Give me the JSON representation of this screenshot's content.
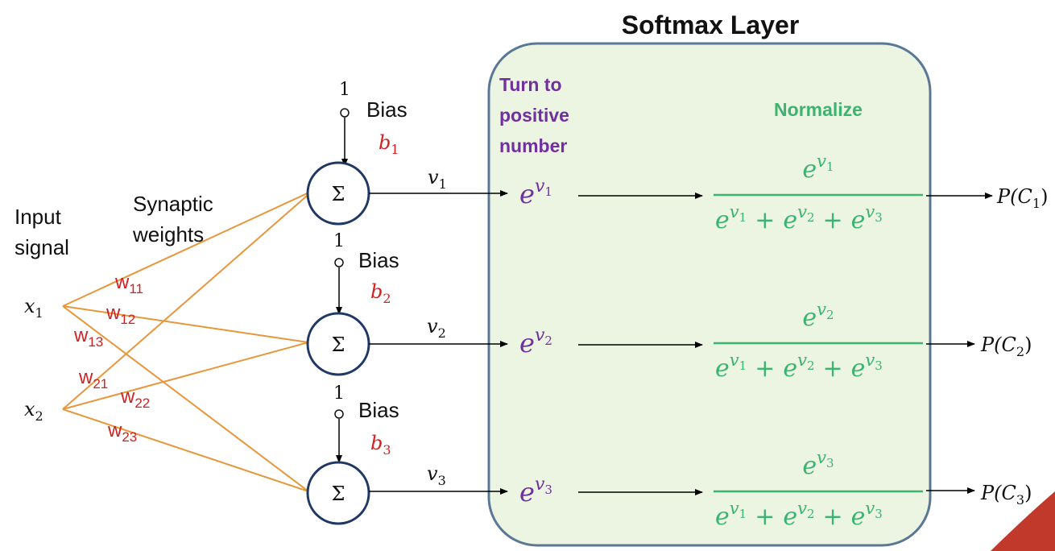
{
  "title": "Softmax Layer",
  "input_label_line1": "Input",
  "input_label_line2": "signal",
  "weights_label_line1": "Synaptic",
  "weights_label_line2": "weights",
  "inputs": [
    {
      "var": "x",
      "sub": "1"
    },
    {
      "var": "x",
      "sub": "2"
    }
  ],
  "weights": [
    {
      "w": "w",
      "sub": "11"
    },
    {
      "w": "w",
      "sub": "12"
    },
    {
      "w": "w",
      "sub": "13"
    },
    {
      "w": "w",
      "sub": "21"
    },
    {
      "w": "w",
      "sub": "22"
    },
    {
      "w": "w",
      "sub": "23"
    }
  ],
  "neurons": [
    {
      "symbol": "Σ",
      "bias_input": "1",
      "bias_label": "Bias",
      "bias_var": "b",
      "bias_sub": "1",
      "out_var": "v",
      "out_sub": "1",
      "exp_base": "e",
      "exp_var": "v",
      "exp_sub": "1",
      "num_base": "e",
      "num_var": "v",
      "num_sub": "1",
      "output": "P(C",
      "output_sub": "1",
      "output_close": ")"
    },
    {
      "symbol": "Σ",
      "bias_input": "1",
      "bias_label": "Bias",
      "bias_var": "b",
      "bias_sub": "2",
      "out_var": "v",
      "out_sub": "2",
      "exp_base": "e",
      "exp_var": "v",
      "exp_sub": "2",
      "num_base": "e",
      "num_var": "v",
      "num_sub": "2",
      "output": "P(C",
      "output_sub": "2",
      "output_close": ")"
    },
    {
      "symbol": "Σ",
      "bias_input": "1",
      "bias_label": "Bias",
      "bias_var": "b",
      "bias_sub": "3",
      "out_var": "v",
      "out_sub": "3",
      "exp_base": "e",
      "exp_var": "v",
      "exp_sub": "3",
      "num_base": "e",
      "num_var": "v",
      "num_sub": "3",
      "output": "P(C",
      "output_sub": "3",
      "output_close": ")"
    }
  ],
  "denominator": {
    "base": "e",
    "var": "v",
    "subs": [
      "1",
      "2",
      "3"
    ],
    "plus": "+"
  },
  "turn_positive_line1": "Turn to",
  "turn_positive_line2": "positive",
  "turn_positive_line3": "number",
  "normalize_label": "Normalize",
  "colors": {
    "purple": "#7030a0",
    "green": "#3cb371",
    "red": "#d42020",
    "orange": "#e8963a",
    "navy": "#1f3864",
    "box_fill": "#ebf5e1",
    "box_stroke": "#5a7896",
    "corner": "#c0392b"
  }
}
